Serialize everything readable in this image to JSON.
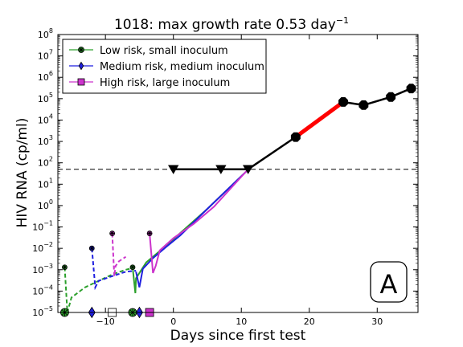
{
  "chart_data": {
    "type": "line",
    "title": "1018: max growth rate 0.53 day",
    "title_superscript": "−1",
    "xlabel": "Days since first test",
    "ylabel": "HIV RNA (cp/ml)",
    "xlim": [
      -17,
      36
    ],
    "ylim_log10": [
      -5,
      8
    ],
    "y_scale": "log",
    "xticks": [
      -10,
      0,
      10,
      20,
      30
    ],
    "yticks_exponent": [
      -5,
      -4,
      -3,
      -2,
      -1,
      0,
      1,
      2,
      3,
      4,
      5,
      6,
      7,
      8
    ],
    "tick_base": "10",
    "grid": false,
    "legend_position": "upper-left",
    "panel_label": "A",
    "detection_limit": 50,
    "legend": [
      {
        "label": "Low risk, small inoculum",
        "color": "#2ca02c",
        "marker": "star"
      },
      {
        "label": "Medium risk, medium inoculum",
        "color": "#1f1fe0",
        "marker": "diamond"
      },
      {
        "label": "High risk, large inoculum",
        "color": "#cc33cc",
        "marker": "square"
      }
    ],
    "observed": {
      "below_limit": {
        "x": [
          0,
          7,
          11
        ],
        "y": [
          50,
          50,
          50
        ]
      },
      "detected": {
        "x": [
          18,
          25,
          28,
          32,
          35
        ],
        "y": [
          1600,
          70000,
          50000,
          120000,
          300000
        ]
      }
    },
    "max_growth_segment": {
      "x": [
        18,
        25
      ],
      "y": [
        1600,
        70000
      ],
      "color": "#ff0000"
    },
    "series": [
      {
        "name": "Low risk, small inoculum",
        "color": "#2ca02c",
        "dashed": {
          "x": [
            -16,
            -15.6,
            -15,
            -13,
            -11,
            -9,
            -7,
            -6
          ],
          "y": [
            0.0013,
            1e-05,
            5e-05,
            0.00015,
            0.0003,
            0.0006,
            0.001,
            0.0012
          ]
        },
        "solid": {
          "x": [
            -6,
            -5.6,
            -5.5,
            -4,
            -2,
            0,
            5,
            11
          ],
          "y": [
            0.0013,
            8e-05,
            0.0004,
            0.0022,
            0.0075,
            0.027,
            0.7,
            48
          ]
        },
        "infection_markers": {
          "x": [
            -16,
            -6
          ],
          "y": [
            0.0013,
            0.0013
          ]
        },
        "bottom_markers_x": [
          -16,
          -6
        ]
      },
      {
        "name": "Medium risk, medium inoculum",
        "color": "#1f1fe0",
        "dashed": {
          "x": [
            -12,
            -11.5,
            -11,
            -9,
            -7,
            -5.5
          ],
          "y": [
            0.01,
            0.00015,
            0.0003,
            0.0005,
            0.0008,
            0.0009
          ]
        },
        "solid": {
          "x": [
            -5.5,
            -5,
            -4.5,
            -3,
            -1,
            1,
            5,
            11
          ],
          "y": [
            0.0008,
            0.00015,
            0.0011,
            0.0035,
            0.012,
            0.04,
            0.7,
            48
          ]
        },
        "infection_markers": {
          "x": [
            -12
          ],
          "y": [
            0.01
          ]
        },
        "bottom_markers_x": [
          -12,
          -5
        ]
      },
      {
        "name": "High risk, large inoculum",
        "color": "#cc33cc",
        "dashed": {
          "x": [
            -9,
            -8.7,
            -8.5,
            -8,
            -7
          ],
          "y": [
            0.05,
            0.0005,
            0.0015,
            0.0025,
            0.004
          ]
        },
        "solid": {
          "x": [
            -3.5,
            -3,
            -2.6,
            -2,
            0,
            3,
            6,
            11
          ],
          "y": [
            0.05,
            0.0007,
            0.0015,
            0.008,
            0.03,
            0.14,
            0.9,
            50
          ]
        },
        "infection_markers": {
          "x": [
            -9,
            -3.5
          ],
          "y": [
            0.05,
            0.05
          ]
        },
        "bottom_markers_x": [
          -9,
          -3.5
        ]
      }
    ]
  }
}
